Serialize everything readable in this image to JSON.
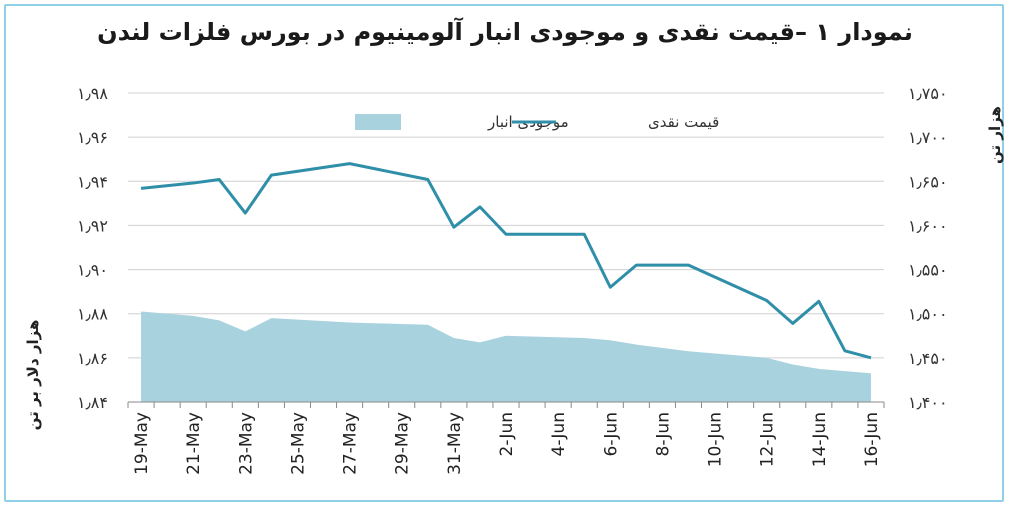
{
  "chart_data": {
    "type": "line",
    "title": "نمودار ۱ –قیمت نقدی و موجودی انبار آلومینیوم در بورس فلزات لندن",
    "ylabel": "هزار دلار بر تن",
    "y2label": "هزار تن",
    "y_ticks": [
      "۱٫۸۴",
      "۱٫۸۶",
      "۱٫۸۸",
      "۱٫۹۰",
      "۱٫۹۲",
      "۱٫۹۴",
      "۱٫۹۶",
      "۱٫۹۸"
    ],
    "y2_ticks": [
      "۱٫۴۰۰",
      "۱٫۴۵۰",
      "۱٫۵۰۰",
      "۱٫۵۵۰",
      "۱٫۶۰۰",
      "۱٫۶۵۰",
      "۱٫۷۰۰",
      "۱٫۷۵۰"
    ],
    "ylim": [
      1.84,
      1.98
    ],
    "y2lim": [
      1400,
      1750
    ],
    "x_tick_labels": [
      "19-May",
      "21-May",
      "23-May",
      "25-May",
      "27-May",
      "29-May",
      "31-May",
      "2-Jun",
      "4-Jun",
      "6-Jun",
      "8-Jun",
      "10-Jun",
      "12-Jun",
      "14-Jun",
      "16-Jun"
    ],
    "x": [
      "19-May",
      "21-May",
      "22-May",
      "23-May",
      "24-May",
      "27-May",
      "30-May",
      "31-May",
      "1-Jun",
      "2-Jun",
      "5-Jun",
      "6-Jun",
      "7-Jun",
      "9-Jun",
      "12-Jun",
      "13-Jun",
      "14-Jun",
      "15-Jun",
      "16-Jun"
    ],
    "x_index": [
      0,
      2,
      3,
      4,
      5,
      8,
      11,
      12,
      13,
      14,
      17,
      18,
      19,
      21,
      24,
      25,
      26,
      27,
      28
    ],
    "series": [
      {
        "name": "قیمت نقدی",
        "axis": "right",
        "type": "line",
        "color": "#2f8fa8",
        "values": [
          1642,
          1648,
          1652,
          1614,
          1657,
          1670,
          1652,
          1598,
          1621,
          1590,
          1590,
          1530,
          1555,
          1555,
          1515,
          1489,
          1514,
          1458,
          1450
        ]
      },
      {
        "name": "موجودی انبار",
        "axis": "left",
        "type": "area",
        "color": "#a9d2df",
        "values": [
          1.881,
          1.879,
          1.877,
          1.872,
          1.878,
          1.876,
          1.875,
          1.869,
          1.867,
          1.87,
          1.869,
          1.868,
          1.866,
          1.863,
          1.86,
          1.857,
          1.855,
          1.854,
          1.853
        ]
      }
    ],
    "legend": {
      "placement": "top-center"
    },
    "grid": true
  }
}
